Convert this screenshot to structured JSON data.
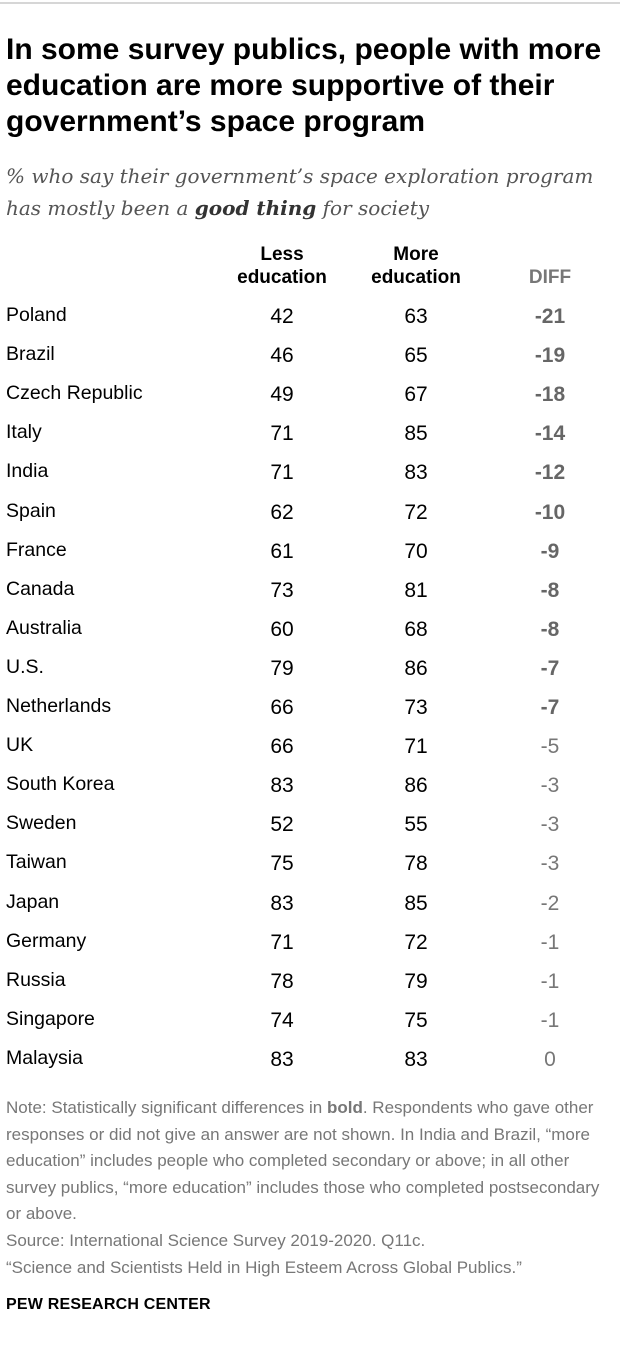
{
  "title": "In some survey publics, people with more education are more supportive of their government’s space program",
  "subtitle_parts": [
    "% who say their government’s space exploration program has mostly been a ",
    "good thing",
    " for society"
  ],
  "columns": {
    "less_line1": "Less",
    "less_line2": "education",
    "more_line1": "More",
    "more_line2": "education",
    "diff": "DIFF"
  },
  "chart_data": {
    "type": "table",
    "columns": [
      "Less education",
      "More education",
      "DIFF"
    ],
    "rows": [
      {
        "country": "Poland",
        "less": "42",
        "more": "63",
        "diff": "-21",
        "significant": true
      },
      {
        "country": "Brazil",
        "less": "46",
        "more": "65",
        "diff": "-19",
        "significant": true
      },
      {
        "country": "Czech Republic",
        "less": "49",
        "more": "67",
        "diff": "-18",
        "significant": true
      },
      {
        "country": "Italy",
        "less": "71",
        "more": "85",
        "diff": "-14",
        "significant": true
      },
      {
        "country": "India",
        "less": "71",
        "more": "83",
        "diff": "-12",
        "significant": true
      },
      {
        "country": "Spain",
        "less": "62",
        "more": "72",
        "diff": "-10",
        "significant": true
      },
      {
        "country": "France",
        "less": "61",
        "more": "70",
        "diff": "-9",
        "significant": true
      },
      {
        "country": "Canada",
        "less": "73",
        "more": "81",
        "diff": "-8",
        "significant": true
      },
      {
        "country": "Australia",
        "less": "60",
        "more": "68",
        "diff": "-8",
        "significant": true
      },
      {
        "country": "U.S.",
        "less": "79",
        "more": "86",
        "diff": "-7",
        "significant": true
      },
      {
        "country": "Netherlands",
        "less": "66",
        "more": "73",
        "diff": "-7",
        "significant": true
      },
      {
        "country": "UK",
        "less": "66",
        "more": "71",
        "diff": "-5",
        "significant": false
      },
      {
        "country": "South Korea",
        "less": "83",
        "more": "86",
        "diff": "-3",
        "significant": false
      },
      {
        "country": "Sweden",
        "less": "52",
        "more": "55",
        "diff": "-3",
        "significant": false
      },
      {
        "country": "Taiwan",
        "less": "75",
        "more": "78",
        "diff": "-3",
        "significant": false
      },
      {
        "country": "Japan",
        "less": "83",
        "more": "85",
        "diff": "-2",
        "significant": false
      },
      {
        "country": "Germany",
        "less": "71",
        "more": "72",
        "diff": "-1",
        "significant": false
      },
      {
        "country": "Russia",
        "less": "78",
        "more": "79",
        "diff": "-1",
        "significant": false
      },
      {
        "country": "Singapore",
        "less": "74",
        "more": "75",
        "diff": "-1",
        "significant": false
      },
      {
        "country": "Malaysia",
        "less": "83",
        "more": "83",
        "diff": "0",
        "significant": false
      }
    ]
  },
  "note_parts": [
    "Note: Statistically significant differences in ",
    "bold",
    ". Respondents who gave other responses or did not give an answer are not shown. In India and Brazil, “more education” includes people who completed secondary or above; in all other survey publics, “more education” includes those who completed postsecondary or above."
  ],
  "source_line1": "Source: International Science Survey 2019-2020. Q11c.",
  "source_line2": "“Science and Scientists Held in High Esteem Across Global Publics.”",
  "logo": "PEW RESEARCH CENTER",
  "colors": {
    "diff_text": "#777777",
    "note_text": "#777777",
    "subtitle_text": "#555555"
  }
}
